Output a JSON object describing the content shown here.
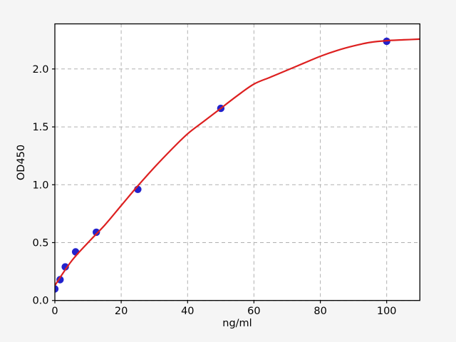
{
  "figure": {
    "background_color": "#f5f5f5",
    "plot_background_color": "#ffffff",
    "grid_color": "#b0b0b0",
    "axis_color": "#000000",
    "tick_label_color": "#000000"
  },
  "chart_data": {
    "type": "scatter",
    "title": "",
    "xlabel": "ng/ml",
    "ylabel": "OD450",
    "xlim": [
      0,
      110
    ],
    "ylim": [
      0,
      2.39
    ],
    "grid": "dashed",
    "legend": "none",
    "x_ticks": [
      {
        "value": 0,
        "label": "0"
      },
      {
        "value": 20,
        "label": "20"
      },
      {
        "value": 40,
        "label": "40"
      },
      {
        "value": 60,
        "label": "60"
      },
      {
        "value": 80,
        "label": "80"
      },
      {
        "value": 100,
        "label": "100"
      }
    ],
    "y_ticks": [
      {
        "value": 0,
        "label": "0.0"
      },
      {
        "value": 0.5,
        "label": "0.5"
      },
      {
        "value": 1,
        "label": "1.0"
      },
      {
        "value": 1.5,
        "label": "1.5"
      },
      {
        "value": 2,
        "label": "2.0"
      }
    ],
    "series": [
      {
        "name": "standard-points",
        "type": "scatter",
        "marker": "circle",
        "color": "#2222cc",
        "points": [
          [
            0,
            0.1
          ],
          [
            1.5625,
            0.18
          ],
          [
            3.125,
            0.29
          ],
          [
            6.25,
            0.42
          ],
          [
            12.5,
            0.59
          ],
          [
            25,
            0.96
          ],
          [
            50,
            1.66
          ],
          [
            100,
            2.24
          ]
        ]
      },
      {
        "name": "fit-curve",
        "type": "line",
        "color": "#dd2020",
        "points": [
          [
            0,
            0.13
          ],
          [
            5,
            0.34
          ],
          [
            10,
            0.5
          ],
          [
            15,
            0.65
          ],
          [
            20,
            0.82
          ],
          [
            25,
            0.99
          ],
          [
            30,
            1.15
          ],
          [
            35,
            1.3
          ],
          [
            40,
            1.44
          ],
          [
            45,
            1.55
          ],
          [
            50,
            1.66
          ],
          [
            55,
            1.77
          ],
          [
            60,
            1.87
          ],
          [
            65,
            1.93
          ],
          [
            70,
            1.99
          ],
          [
            75,
            2.05
          ],
          [
            80,
            2.11
          ],
          [
            85,
            2.16
          ],
          [
            90,
            2.2
          ],
          [
            95,
            2.23
          ],
          [
            100,
            2.245
          ],
          [
            105,
            2.252
          ],
          [
            110,
            2.258
          ]
        ]
      }
    ]
  }
}
